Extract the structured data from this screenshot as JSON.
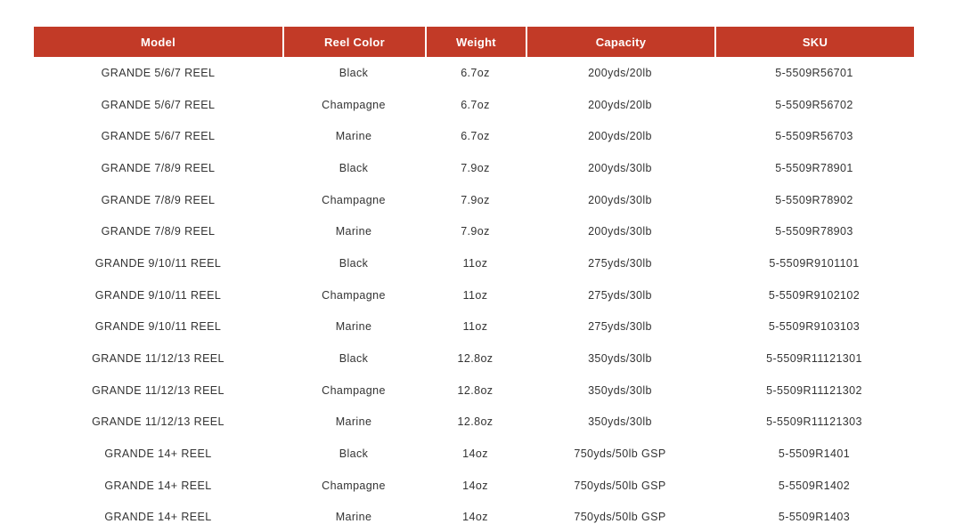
{
  "colors": {
    "header_bg": "#c23a27",
    "header_text": "#ffffff",
    "body_text": "#333333",
    "page_bg": "#ffffff"
  },
  "table": {
    "columns": [
      {
        "key": "model",
        "label": "Model"
      },
      {
        "key": "color",
        "label": "Reel Color"
      },
      {
        "key": "weight",
        "label": "Weight"
      },
      {
        "key": "capacity",
        "label": "Capacity"
      },
      {
        "key": "sku",
        "label": "SKU"
      }
    ],
    "rows": [
      [
        "GRANDE 5/6/7 REEL",
        "Black",
        "6.7oz",
        "200yds/20lb",
        "5-5509R56701"
      ],
      [
        "GRANDE 5/6/7 REEL",
        "Champagne",
        "6.7oz",
        "200yds/20lb",
        "5-5509R56702"
      ],
      [
        "GRANDE 5/6/7 REEL",
        "Marine",
        "6.7oz",
        "200yds/20lb",
        "5-5509R56703"
      ],
      [
        "GRANDE 7/8/9 REEL",
        "Black",
        "7.9oz",
        "200yds/30lb",
        "5-5509R78901"
      ],
      [
        "GRANDE 7/8/9 REEL",
        "Champagne",
        "7.9oz",
        "200yds/30lb",
        "5-5509R78902"
      ],
      [
        "GRANDE 7/8/9 REEL",
        "Marine",
        "7.9oz",
        "200yds/30lb",
        "5-5509R78903"
      ],
      [
        "GRANDE 9/10/11 REEL",
        "Black",
        "11oz",
        "275yds/30lb",
        "5-5509R9101101"
      ],
      [
        "GRANDE 9/10/11 REEL",
        "Champagne",
        "11oz",
        "275yds/30lb",
        "5-5509R9102102"
      ],
      [
        "GRANDE 9/10/11 REEL",
        "Marine",
        "11oz",
        "275yds/30lb",
        "5-5509R9103103"
      ],
      [
        "GRANDE 11/12/13 REEL",
        "Black",
        "12.8oz",
        "350yds/30lb",
        "5-5509R11121301"
      ],
      [
        "GRANDE 11/12/13 REEL",
        "Champagne",
        "12.8oz",
        "350yds/30lb",
        "5-5509R11121302"
      ],
      [
        "GRANDE 11/12/13 REEL",
        "Marine",
        "12.8oz",
        "350yds/30lb",
        "5-5509R11121303"
      ],
      [
        "GRANDE 14+ REEL",
        "Black",
        "14oz",
        "750yds/50lb GSP",
        "5-5509R1401"
      ],
      [
        "GRANDE 14+ REEL",
        "Champagne",
        "14oz",
        "750yds/50lb GSP",
        "5-5509R1402"
      ],
      [
        "GRANDE 14+ REEL",
        "Marine",
        "14oz",
        "750yds/50lb GSP",
        "5-5509R1403"
      ]
    ]
  }
}
